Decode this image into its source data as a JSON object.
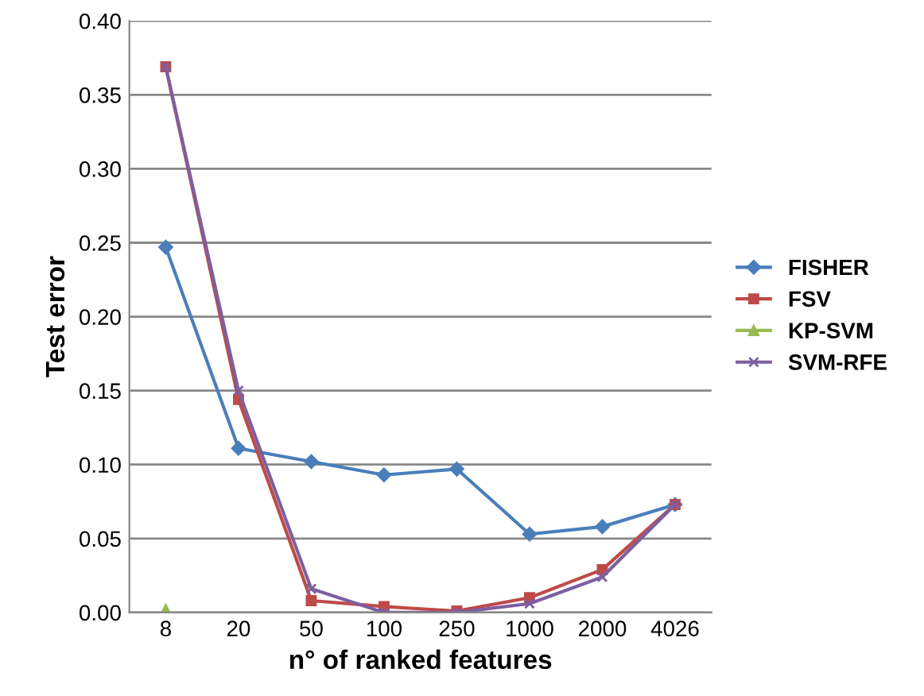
{
  "chart_data": {
    "type": "line",
    "xlabel": "n° of ranked features",
    "ylabel": "Test error",
    "categories": [
      "8",
      "20",
      "50",
      "100",
      "250",
      "1000",
      "2000",
      "4026"
    ],
    "series": [
      {
        "name": "FISHER",
        "color": "#4a7ebb",
        "marker": "diamond",
        "values": [
          0.247,
          0.111,
          0.102,
          0.093,
          0.097,
          0.053,
          0.058,
          0.073
        ]
      },
      {
        "name": "FSV",
        "color": "#be4b48",
        "marker": "square",
        "values": [
          0.369,
          0.144,
          0.008,
          0.004,
          0.001,
          0.01,
          0.029,
          0.073
        ]
      },
      {
        "name": "KP-SVM",
        "color": "#98b954",
        "marker": "triangle",
        "values": [
          0.002,
          null,
          null,
          null,
          null,
          null,
          null,
          null
        ]
      },
      {
        "name": "SVM-RFE",
        "color": "#7d5fa0",
        "marker": "cross",
        "values": [
          0.369,
          0.15,
          0.016,
          0.0,
          0.0,
          0.006,
          0.024,
          0.073
        ]
      }
    ],
    "ylim": [
      0,
      0.4
    ],
    "yticks": [
      {
        "value": 0,
        "label": "0.00"
      },
      {
        "value": 0.05,
        "label": "0.05"
      },
      {
        "value": 0.1,
        "label": "0.10"
      },
      {
        "value": 0.15,
        "label": "0.15"
      },
      {
        "value": 0.2,
        "label": "0.20"
      },
      {
        "value": 0.25,
        "label": "0.25"
      },
      {
        "value": 0.3,
        "label": "0.30"
      },
      {
        "value": 0.35,
        "label": "0.35"
      },
      {
        "value": 0.4,
        "label": "0.40"
      }
    ],
    "grid": "y",
    "legend": "right"
  }
}
